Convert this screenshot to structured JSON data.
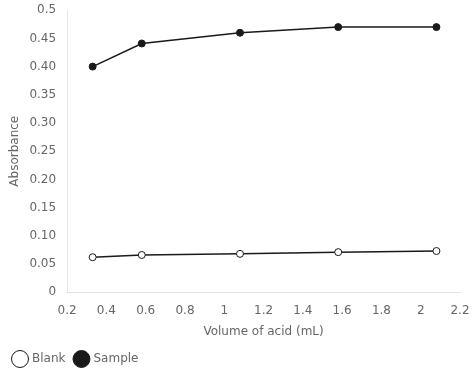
{
  "chart_data": {
    "type": "line",
    "x": [
      0.33,
      0.58,
      1.08,
      1.58,
      2.08
    ],
    "series": [
      {
        "name": "Blank",
        "color": "#1a1a1a",
        "marker": "circle_open",
        "line_style": "solid",
        "values": [
          0.062,
          0.066,
          0.068,
          0.071,
          0.073
        ]
      },
      {
        "name": "Sample",
        "color": "#1a1a1a",
        "marker": "circle",
        "line_style": "solid",
        "values": [
          0.4,
          0.441,
          0.46,
          0.47,
          0.47
        ]
      }
    ],
    "xlabel": "Volume of acid (mL)",
    "ylabel": "Absorbance",
    "xlim": [
      0.2,
      2.2
    ],
    "ylim": [
      0,
      0.5
    ],
    "xticks": [
      0.2,
      0.4,
      0.6,
      0.8,
      1,
      1.2,
      1.4,
      1.6,
      1.8,
      2,
      2.2
    ],
    "yticks": [
      0,
      0.05,
      {
        "value": 0.1,
        "label": "0.10"
      },
      0.15,
      {
        "value": 0.2,
        "label": "0.20"
      },
      0.25,
      {
        "value": 0.3,
        "label": "0.30"
      },
      0.35,
      {
        "value": 0.4,
        "label": "0.40"
      },
      0.45,
      0.5
    ],
    "grid": false,
    "legend": "bottom_left"
  }
}
